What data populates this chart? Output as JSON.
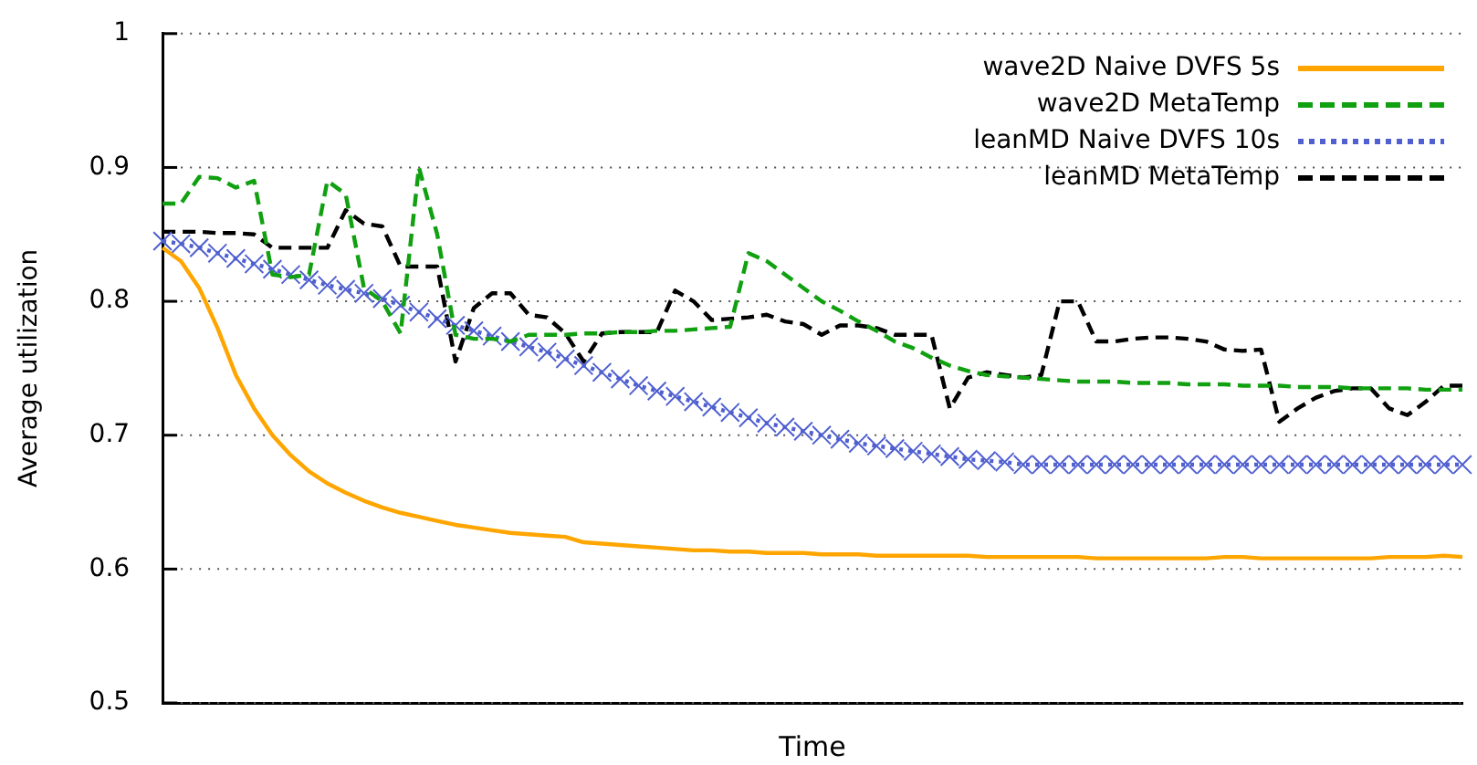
{
  "chart_data": {
    "type": "line",
    "xlabel": "Time",
    "ylabel": "Average utilization",
    "categories": [
      null,
      null,
      null,
      null,
      null,
      null,
      null,
      null,
      null,
      null,
      null,
      null,
      null,
      null,
      null,
      null,
      null,
      null,
      null,
      null,
      null,
      null,
      null,
      null,
      null,
      null,
      null,
      null,
      null,
      null,
      null,
      null,
      null,
      null,
      null,
      null,
      null,
      null,
      null,
      null,
      null,
      null,
      null,
      null,
      null,
      null,
      null,
      null,
      null,
      null,
      null,
      null,
      null,
      null,
      null,
      null,
      null,
      null,
      null,
      null,
      null,
      null,
      null,
      null,
      null,
      null,
      null,
      null,
      null,
      null,
      null,
      null
    ],
    "ylim": [
      0.5,
      1
    ],
    "yticks": [
      0.5,
      0.6,
      0.7,
      0.8,
      0.9,
      1
    ],
    "grid": "y",
    "legend": "top right",
    "tick_labels": "y",
    "series": [
      {
        "name": "wave2D Naive DVFS 5s",
        "color": "#ffa500",
        "line_style": "solid",
        "marker": "none",
        "values": [
          0.84,
          0.83,
          0.81,
          0.78,
          0.745,
          0.72,
          0.7,
          0.685,
          0.673,
          0.664,
          0.657,
          0.651,
          0.646,
          0.642,
          0.639,
          0.636,
          0.633,
          0.631,
          0.629,
          0.627,
          0.626,
          0.625,
          0.624,
          0.62,
          0.619,
          0.618,
          0.617,
          0.616,
          0.615,
          0.614,
          0.614,
          0.613,
          0.613,
          0.612,
          0.612,
          0.612,
          0.611,
          0.611,
          0.611,
          0.61,
          0.61,
          0.61,
          0.61,
          0.61,
          0.61,
          0.609,
          0.609,
          0.609,
          0.609,
          0.609,
          0.609,
          0.608,
          0.608,
          0.608,
          0.608,
          0.608,
          0.608,
          0.608,
          0.609,
          0.609,
          0.608,
          0.608,
          0.608,
          0.608,
          0.608,
          0.608,
          0.608,
          0.609,
          0.609,
          0.609,
          0.61,
          0.609
        ]
      },
      {
        "name": "wave2D MetaTemp",
        "color": "#10a010",
        "line_style": "dashed",
        "marker": "none",
        "values": [
          0.873,
          0.873,
          0.893,
          0.892,
          0.885,
          0.89,
          0.82,
          0.818,
          0.82,
          0.89,
          0.88,
          0.81,
          0.8,
          0.776,
          0.9,
          0.85,
          0.775,
          0.772,
          0.772,
          0.77,
          0.775,
          0.775,
          0.775,
          0.776,
          0.776,
          0.777,
          0.777,
          0.778,
          0.778,
          0.779,
          0.78,
          0.781,
          0.836,
          0.83,
          0.82,
          0.81,
          0.8,
          0.793,
          0.785,
          0.778,
          0.77,
          0.765,
          0.758,
          0.752,
          0.748,
          0.745,
          0.744,
          0.743,
          0.742,
          0.741,
          0.74,
          0.74,
          0.74,
          0.739,
          0.739,
          0.739,
          0.738,
          0.738,
          0.738,
          0.737,
          0.737,
          0.737,
          0.736,
          0.736,
          0.736,
          0.735,
          0.735,
          0.735,
          0.735,
          0.734,
          0.734,
          0.734
        ]
      },
      {
        "name": "leanMD Naive DVFS 10s",
        "color": "#5060d0",
        "line_style": "dotted",
        "marker": "cross",
        "values": [
          0.845,
          0.843,
          0.84,
          0.836,
          0.832,
          0.828,
          0.824,
          0.82,
          0.816,
          0.812,
          0.809,
          0.806,
          0.802,
          0.797,
          0.792,
          0.787,
          0.782,
          0.778,
          0.774,
          0.77,
          0.766,
          0.762,
          0.757,
          0.752,
          0.747,
          0.742,
          0.737,
          0.733,
          0.729,
          0.725,
          0.721,
          0.717,
          0.713,
          0.709,
          0.706,
          0.703,
          0.7,
          0.697,
          0.694,
          0.692,
          0.69,
          0.688,
          0.686,
          0.684,
          0.682,
          0.681,
          0.68,
          0.678,
          0.678,
          0.678,
          0.678,
          0.678,
          0.678,
          0.678,
          0.678,
          0.678,
          0.678,
          0.678,
          0.678,
          0.678,
          0.678,
          0.678,
          0.678,
          0.678,
          0.678,
          0.678,
          0.678,
          0.678,
          0.678,
          0.678,
          0.678,
          0.678
        ]
      },
      {
        "name": "leanMD MetaTemp",
        "color": "#000000",
        "line_style": "dashed",
        "marker": "none",
        "values": [
          0.852,
          0.852,
          0.852,
          0.851,
          0.851,
          0.85,
          0.84,
          0.84,
          0.84,
          0.84,
          0.868,
          0.858,
          0.856,
          0.826,
          0.826,
          0.826,
          0.755,
          0.795,
          0.806,
          0.806,
          0.79,
          0.788,
          0.776,
          0.755,
          0.776,
          0.777,
          0.777,
          0.777,
          0.808,
          0.8,
          0.786,
          0.787,
          0.788,
          0.79,
          0.785,
          0.783,
          0.775,
          0.782,
          0.782,
          0.78,
          0.775,
          0.775,
          0.775,
          0.72,
          0.743,
          0.747,
          0.745,
          0.743,
          0.745,
          0.8,
          0.8,
          0.77,
          0.77,
          0.772,
          0.773,
          0.773,
          0.772,
          0.77,
          0.764,
          0.763,
          0.764,
          0.71,
          0.72,
          0.728,
          0.733,
          0.735,
          0.735,
          0.72,
          0.715,
          0.725,
          0.737,
          0.737
        ]
      }
    ]
  }
}
